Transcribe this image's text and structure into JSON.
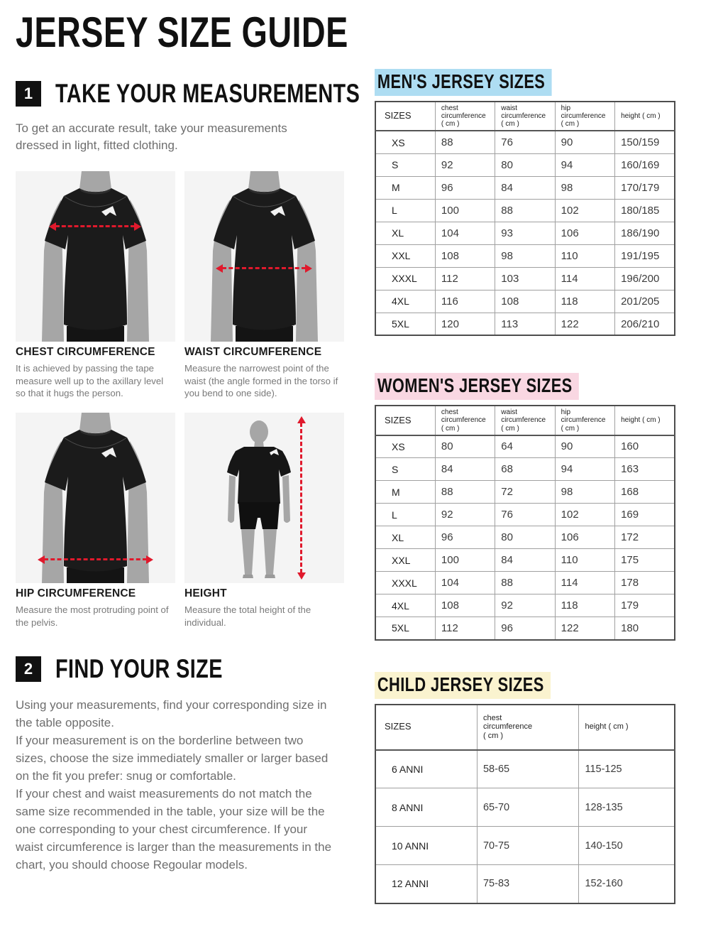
{
  "page_title": "JERSEY SIZE GUIDE",
  "colors": {
    "arrow_red": "#e0192c",
    "men_highlight": "#aeddf2",
    "women_highlight": "#f9d7e2",
    "child_highlight": "#faf3cf"
  },
  "steps": [
    {
      "number": "1",
      "title": "TAKE YOUR MEASUREMENTS",
      "intro": "To get an accurate result, take your measurements dressed in light, fitted clothing."
    },
    {
      "number": "2",
      "title": "FIND YOUR SIZE",
      "body": "Using your measurements, find your corresponding size in the table opposite.\nIf your measurement is on the borderline between two sizes, choose the size immediately smaller or larger based on the fit you prefer: snug or comfortable.\nIf your chest and waist measurements do not match the same size recommended in the table, your size will be the one corresponding to your chest circumference. If your waist circumference is larger than the measurements in the chart, you should choose Regoular models."
    }
  ],
  "measurements": [
    {
      "label": "CHEST CIRCUMFERENCE",
      "description": "It is achieved by passing the tape measure well up to the axillary level so that it hugs the person."
    },
    {
      "label": "WAIST CIRCUMFERENCE",
      "description": "Measure the narrowest point of the waist (the angle formed in the torso if you bend to one side)."
    },
    {
      "label": "HIP CIRCUMFERENCE",
      "description": "Measure the most protruding point of the pelvis."
    },
    {
      "label": "HEIGHT",
      "description": "Measure the total height of the individual."
    }
  ],
  "tables": {
    "men": {
      "title": "MEN'S JERSEY SIZES",
      "highlight": "#aeddf2",
      "headers": [
        "SIZES",
        "chest\ncircumference\n( cm )",
        "waist\ncircumference\n( cm )",
        "hip\ncircumference\n( cm )",
        "height ( cm )"
      ],
      "rows": [
        [
          "XS",
          "88",
          "76",
          "90",
          "150/159"
        ],
        [
          "S",
          "92",
          "80",
          "94",
          "160/169"
        ],
        [
          "M",
          "96",
          "84",
          "98",
          "170/179"
        ],
        [
          "L",
          "100",
          "88",
          "102",
          "180/185"
        ],
        [
          "XL",
          "104",
          "93",
          "106",
          "186/190"
        ],
        [
          "XXL",
          "108",
          "98",
          "110",
          "191/195"
        ],
        [
          "XXXL",
          "112",
          "103",
          "114",
          "196/200"
        ],
        [
          "4XL",
          "116",
          "108",
          "118",
          "201/205"
        ],
        [
          "5XL",
          "120",
          "113",
          "122",
          "206/210"
        ]
      ]
    },
    "women": {
      "title": "WOMEN'S JERSEY SIZES",
      "highlight": "#f9d7e2",
      "headers": [
        "SIZES",
        "chest\ncircumference\n( cm )",
        "waist\ncircumference\n( cm )",
        "hip\ncircumference\n( cm )",
        "height ( cm )"
      ],
      "rows": [
        [
          "XS",
          "80",
          "64",
          "90",
          "160"
        ],
        [
          "S",
          "84",
          "68",
          "94",
          "163"
        ],
        [
          "M",
          "88",
          "72",
          "98",
          "168"
        ],
        [
          "L",
          "92",
          "76",
          "102",
          "169"
        ],
        [
          "XL",
          "96",
          "80",
          "106",
          "172"
        ],
        [
          "XXL",
          "100",
          "84",
          "110",
          "175"
        ],
        [
          "XXXL",
          "104",
          "88",
          "114",
          "178"
        ],
        [
          "4XL",
          "108",
          "92",
          "118",
          "179"
        ],
        [
          "5XL",
          "112",
          "96",
          "122",
          "180"
        ]
      ]
    },
    "child": {
      "title": "CHILD JERSEY SIZES",
      "highlight": "#faf3cf",
      "headers": [
        "SIZES",
        "chest\ncircumference\n( cm )",
        "height ( cm )"
      ],
      "rows": [
        [
          "6 ANNI",
          "58-65",
          "115-125"
        ],
        [
          "8 ANNI",
          "65-70",
          "128-135"
        ],
        [
          "10 ANNI",
          "70-75",
          "140-150"
        ],
        [
          "12 ANNI",
          "75-83",
          "152-160"
        ]
      ]
    }
  }
}
